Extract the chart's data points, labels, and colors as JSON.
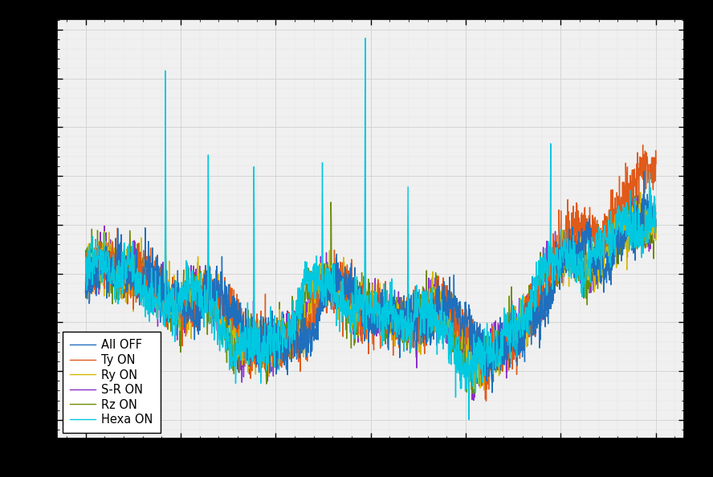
{
  "title": "",
  "xlabel": "",
  "ylabel": "",
  "figsize": [
    8.88,
    5.94
  ],
  "dpi": 100,
  "plot_bg_color": "#f0f0f0",
  "fig_bg_color": "#000000",
  "grid_color": "#d0d0d0",
  "legend_labels": [
    "All OFF",
    "Ty ON",
    "Ry ON",
    "S-R ON",
    "Rz ON",
    "Hexa ON"
  ],
  "line_colors": [
    "#1f6fbd",
    "#e05a1a",
    "#d4b800",
    "#8b2fc9",
    "#6b8c00",
    "#00c8e0"
  ],
  "line_widths": [
    1.0,
    1.0,
    1.0,
    1.0,
    1.0,
    1.0
  ],
  "n_points": 2000,
  "seed": 42
}
